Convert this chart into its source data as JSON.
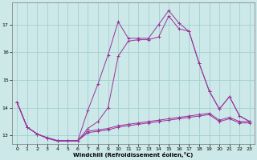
{
  "xlabel": "Windchill (Refroidissement éolien,°C)",
  "ylabel": "",
  "background_color": "#cce8e8",
  "grid_color": "#99cccc",
  "line_color": "#993399",
  "xlim": [
    -0.5,
    23.5
  ],
  "ylim": [
    12.7,
    17.8
  ],
  "yticks": [
    13,
    14,
    15,
    16,
    17
  ],
  "xticks": [
    0,
    1,
    2,
    3,
    4,
    5,
    6,
    7,
    8,
    9,
    10,
    11,
    12,
    13,
    14,
    15,
    16,
    17,
    18,
    19,
    20,
    21,
    22,
    23
  ],
  "series": [
    [
      14.2,
      13.3,
      13.05,
      12.9,
      12.8,
      12.8,
      12.8,
      13.1,
      13.15,
      13.2,
      13.3,
      13.35,
      13.4,
      13.45,
      13.5,
      13.55,
      13.6,
      13.65,
      13.7,
      13.75,
      13.5,
      13.6,
      13.45,
      13.45
    ],
    [
      14.2,
      13.3,
      13.05,
      12.92,
      12.82,
      12.82,
      12.82,
      13.15,
      13.2,
      13.25,
      13.35,
      13.4,
      13.45,
      13.5,
      13.55,
      13.6,
      13.65,
      13.7,
      13.75,
      13.8,
      13.55,
      13.65,
      13.5,
      13.5
    ],
    [
      14.2,
      13.3,
      13.05,
      12.9,
      12.8,
      12.8,
      12.8,
      13.9,
      14.85,
      15.9,
      17.1,
      16.5,
      16.5,
      16.5,
      17.0,
      17.5,
      17.05,
      16.75,
      15.6,
      14.6,
      13.95,
      14.4,
      13.7,
      13.5
    ],
    [
      14.2,
      13.3,
      13.05,
      12.9,
      12.8,
      12.8,
      12.8,
      13.25,
      13.5,
      14.0,
      15.85,
      16.4,
      16.45,
      16.45,
      16.55,
      17.3,
      16.85,
      16.75,
      15.6,
      14.6,
      13.95,
      14.4,
      13.7,
      13.5
    ]
  ]
}
